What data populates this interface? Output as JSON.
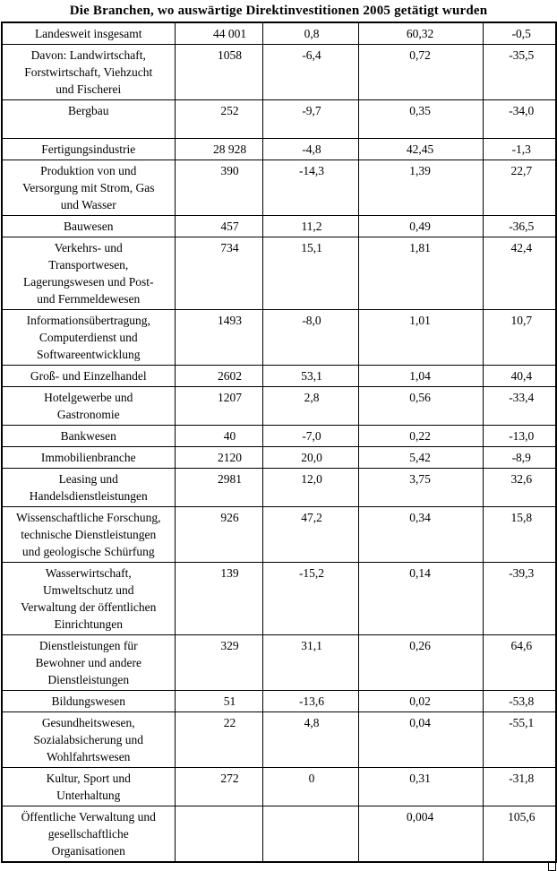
{
  "title": "Die Branchen, wo auswärtige Direktinvestitionen 2005 getätigt wurden",
  "colors": {
    "text": "#000000",
    "border": "#000000",
    "background": "#ffffff"
  },
  "table": {
    "rows": [
      {
        "name_lines": [
          "Landesweit insgesamt"
        ],
        "values": [
          "44 001",
          "0,8",
          "60,32",
          "-0,5"
        ]
      },
      {
        "name_lines": [
          "Davon: Landwirtschaft,",
          "Forstwirtschaft, Viehzucht",
          "und Fischerei"
        ],
        "values": [
          "1058",
          "-6,4",
          "0,72",
          "-35,5"
        ]
      },
      {
        "name_lines": [
          "Bergbau",
          ""
        ],
        "values": [
          "252",
          "-9,7",
          "0,35",
          "-34,0"
        ]
      },
      {
        "name_lines": [
          "Fertigungsindustrie"
        ],
        "values": [
          "28 928",
          "-4,8",
          "42,45",
          "-1,3"
        ]
      },
      {
        "name_lines": [
          "Produktion von und",
          "Versorgung mit Strom, Gas",
          "und Wasser"
        ],
        "values": [
          "390",
          "-14,3",
          "1,39",
          "22,7"
        ]
      },
      {
        "name_lines": [
          "Bauwesen"
        ],
        "values": [
          "457",
          "11,2",
          "0,49",
          "-36,5"
        ]
      },
      {
        "name_lines": [
          "Verkehrs- und",
          "Transportwesen,",
          "Lagerungswesen und Post-",
          "und Fernmeldewesen"
        ],
        "values": [
          "734",
          "15,1",
          "1,81",
          "42,4"
        ]
      },
      {
        "name_lines": [
          "Informationsübertragung,",
          "Computerdienst und",
          "Softwareentwicklung"
        ],
        "values": [
          "1493",
          "-8,0",
          "1,01",
          "10,7"
        ]
      },
      {
        "name_lines": [
          "Groß- und Einzelhandel"
        ],
        "values": [
          "2602",
          "53,1",
          "1,04",
          "40,4"
        ]
      },
      {
        "name_lines": [
          "Hotelgewerbe und",
          "Gastronomie"
        ],
        "values": [
          "1207",
          "2,8",
          "0,56",
          "-33,4"
        ]
      },
      {
        "name_lines": [
          "Bankwesen"
        ],
        "values": [
          "40",
          "-7,0",
          "0,22",
          "-13,0"
        ]
      },
      {
        "name_lines": [
          "Immobilienbranche"
        ],
        "values": [
          "2120",
          "20,0",
          "5,42",
          "-8,9"
        ]
      },
      {
        "name_lines": [
          "Leasing und",
          "Handelsdienstleistungen"
        ],
        "values": [
          "2981",
          "12,0",
          "3,75",
          "32,6"
        ]
      },
      {
        "name_lines": [
          "Wissenschaftliche Forschung,",
          "technische Dienstleistungen",
          "und geologische Schürfung"
        ],
        "values": [
          "926",
          "47,2",
          "0,34",
          "15,8"
        ]
      },
      {
        "name_lines": [
          "Wasserwirtschaft,",
          "Umweltschutz und",
          "Verwaltung der öffentlichen",
          "Einrichtungen"
        ],
        "values": [
          "139",
          "-15,2",
          "0,14",
          "-39,3"
        ]
      },
      {
        "name_lines": [
          "Dienstleistungen für",
          "Bewohner und andere",
          "Dienstleistungen"
        ],
        "values": [
          "329",
          "31,1",
          "0,26",
          "64,6"
        ]
      },
      {
        "name_lines": [
          "Bildungswesen"
        ],
        "values": [
          "51",
          "-13,6",
          "0,02",
          "-53,8"
        ]
      },
      {
        "name_lines": [
          "Gesundheitswesen,",
          "Sozialabsicherung und",
          "Wohlfahrtswesen"
        ],
        "values": [
          "22",
          "4,8",
          "0,04",
          "-55,1"
        ]
      },
      {
        "name_lines": [
          "Kultur, Sport und",
          "Unterhaltung"
        ],
        "values": [
          "272",
          "0",
          "0,31",
          "-31,8"
        ]
      },
      {
        "name_lines": [
          "Öffentliche Verwaltung und",
          "gesellschaftliche",
          "Organisationen"
        ],
        "values": [
          "",
          "",
          "0,004",
          "105,6"
        ]
      }
    ]
  }
}
